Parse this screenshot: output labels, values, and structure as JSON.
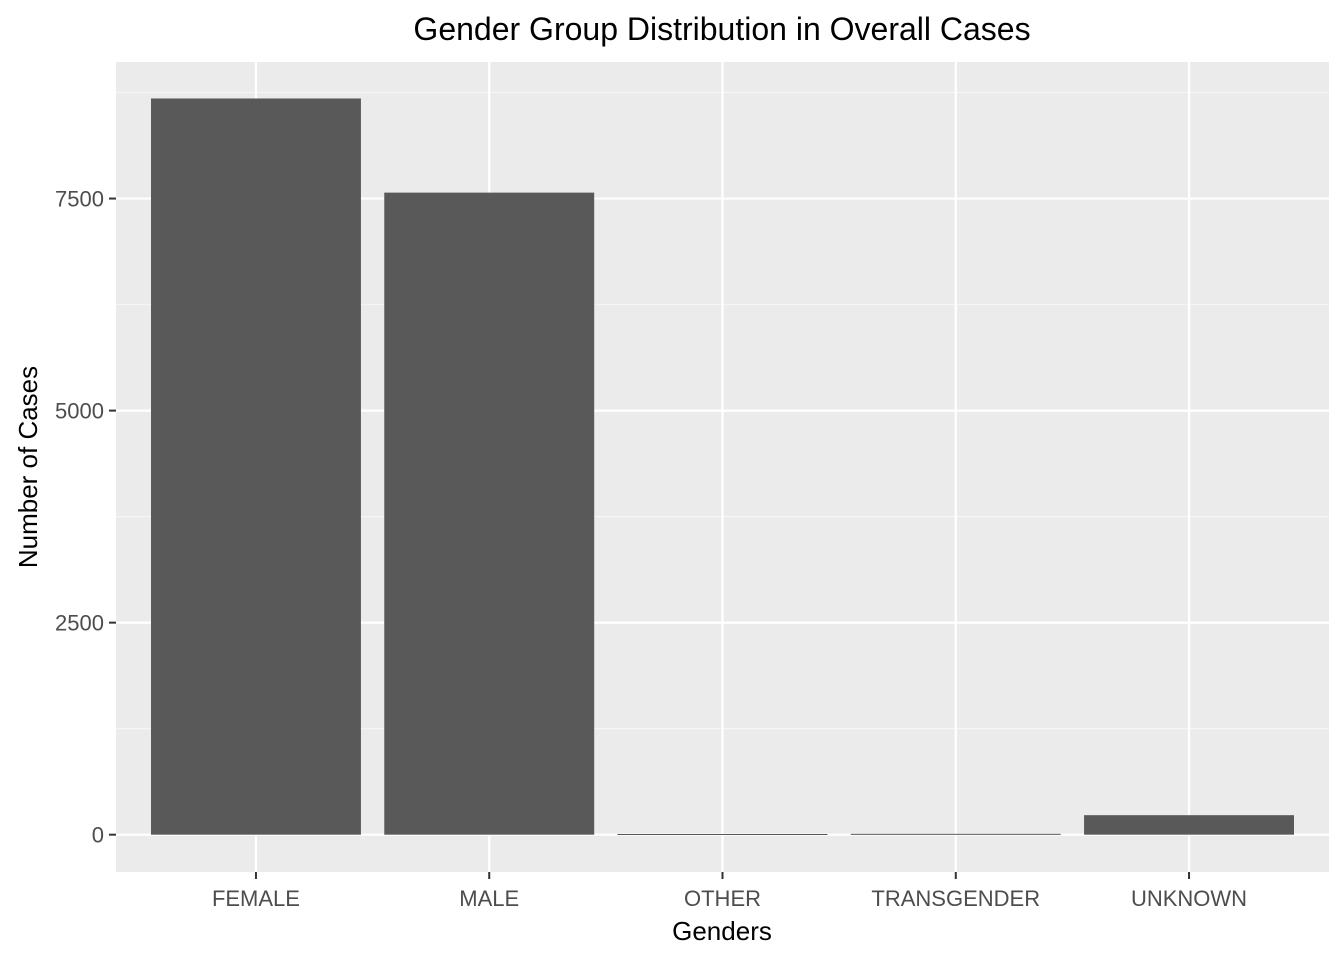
{
  "chart_data": {
    "type": "bar",
    "title": "Gender Group Distribution in Overall Cases",
    "xlabel": "Genders",
    "ylabel": "Number of Cases",
    "categories": [
      "FEMALE",
      "MALE",
      "OTHER",
      "TRANSGENDER",
      "UNKNOWN"
    ],
    "values": [
      8680,
      7570,
      8,
      10,
      230
    ],
    "ylim": [
      -440,
      9110
    ],
    "yticks": [
      0,
      2500,
      5000,
      7500
    ],
    "ytick_labels": [
      "0",
      "2500",
      "5000",
      "7500"
    ],
    "grid": true,
    "legend": "none",
    "colors": {
      "bar": "#595959",
      "panel": "#ebebeb",
      "grid_major": "#ffffff",
      "grid_minor": "#f5f5f5",
      "tick": "#333333"
    }
  }
}
